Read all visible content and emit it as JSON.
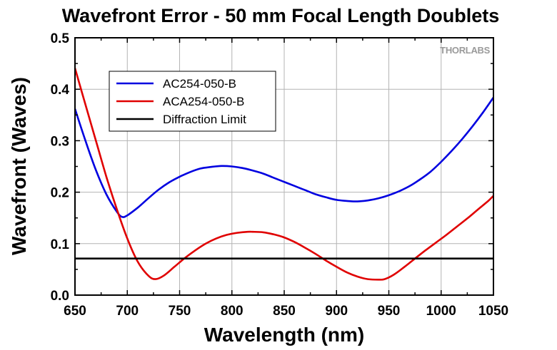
{
  "chart_data": {
    "type": "line",
    "title": "Wavefront Error - 50 mm Focal Length Doublets",
    "xlabel": "Wavelength (nm)",
    "ylabel": "Wavefront (Waves)",
    "xlim": [
      650,
      1050
    ],
    "ylim": [
      0.0,
      0.5
    ],
    "xticks": [
      "650",
      "700",
      "750",
      "800",
      "850",
      "900",
      "950",
      "1000",
      "1050"
    ],
    "yticks": [
      "0.0",
      "0.1",
      "0.2",
      "0.3",
      "0.4",
      "0.5"
    ],
    "grid": true,
    "legend_position": "top-left",
    "watermark": "THORLABS",
    "series": [
      {
        "name": "AC254-050-B",
        "color": "#0000e0",
        "x": [
          650,
          660,
          670,
          680,
          690,
          695,
          700,
          710,
          720,
          730,
          740,
          750,
          760,
          770,
          780,
          790,
          800,
          810,
          820,
          830,
          840,
          850,
          860,
          870,
          880,
          890,
          900,
          910,
          920,
          930,
          940,
          950,
          960,
          970,
          980,
          990,
          1000,
          1010,
          1020,
          1030,
          1040,
          1050
        ],
        "y": [
          0.362,
          0.3,
          0.243,
          0.196,
          0.162,
          0.152,
          0.155,
          0.17,
          0.188,
          0.205,
          0.219,
          0.23,
          0.239,
          0.246,
          0.249,
          0.251,
          0.25,
          0.247,
          0.242,
          0.236,
          0.228,
          0.22,
          0.212,
          0.204,
          0.196,
          0.19,
          0.185,
          0.183,
          0.182,
          0.184,
          0.188,
          0.194,
          0.202,
          0.212,
          0.225,
          0.24,
          0.259,
          0.28,
          0.303,
          0.328,
          0.355,
          0.384
        ]
      },
      {
        "name": "ACA254-050-B",
        "color": "#e00000",
        "x": [
          650,
          660,
          670,
          680,
          690,
          700,
          710,
          720,
          727,
          735,
          745,
          755,
          765,
          775,
          785,
          795,
          805,
          815,
          820,
          830,
          840,
          850,
          860,
          870,
          880,
          890,
          900,
          910,
          920,
          930,
          940,
          946,
          955,
          965,
          975,
          985,
          995,
          1005,
          1015,
          1025,
          1035,
          1045,
          1050
        ],
        "y": [
          0.441,
          0.37,
          0.3,
          0.23,
          0.167,
          0.11,
          0.065,
          0.038,
          0.031,
          0.038,
          0.055,
          0.072,
          0.087,
          0.1,
          0.11,
          0.117,
          0.121,
          0.123,
          0.123,
          0.122,
          0.118,
          0.112,
          0.103,
          0.092,
          0.08,
          0.067,
          0.055,
          0.044,
          0.036,
          0.031,
          0.03,
          0.031,
          0.04,
          0.055,
          0.071,
          0.087,
          0.102,
          0.117,
          0.133,
          0.149,
          0.166,
          0.183,
          0.193
        ]
      },
      {
        "name": "Diffraction Limit",
        "color": "#000000",
        "x": [
          650,
          1050
        ],
        "y": [
          0.071,
          0.071
        ]
      }
    ]
  }
}
